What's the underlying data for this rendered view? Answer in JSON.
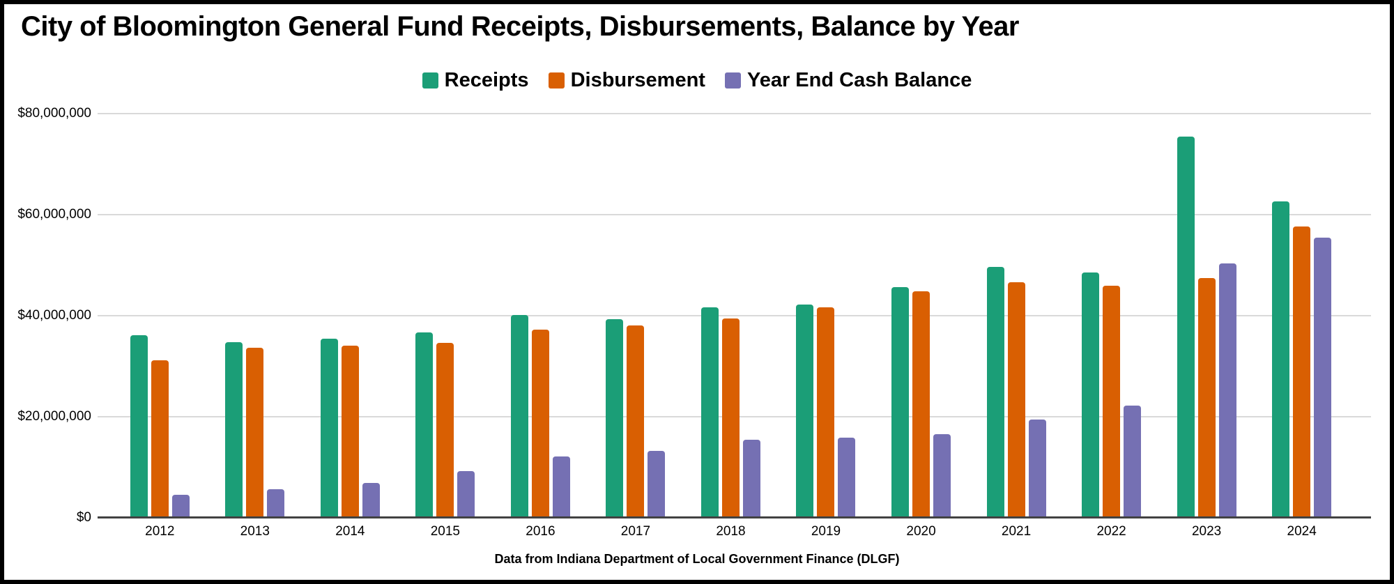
{
  "header": {
    "title": "City of Bloomington General Fund Receipts, Disbursements, Balance by Year"
  },
  "legend": {
    "items": [
      {
        "label": "Receipts",
        "color": "#1b9e77"
      },
      {
        "label": "Disbursement",
        "color": "#d95f02"
      },
      {
        "label": "Year End Cash Balance",
        "color": "#7570b3"
      }
    ]
  },
  "footer": {
    "text": "Data from Indiana Department of Local Government Finance (DLGF)"
  },
  "colors": {
    "background": "#ffffff",
    "frame_border": "#000000",
    "gridline": "#d9d9d9",
    "axis_line": "#424242",
    "text": "#000000",
    "receipts": "#1b9e77",
    "disbursement": "#d95f02",
    "year_end_cash_balance": "#7570b3"
  },
  "chart_data": {
    "type": "bar",
    "title": "City of Bloomington General Fund Receipts, Disbursements, Balance by Year",
    "categories": [
      "2012",
      "2013",
      "2014",
      "2015",
      "2016",
      "2017",
      "2018",
      "2019",
      "2020",
      "2021",
      "2022",
      "2023",
      "2024"
    ],
    "series": [
      {
        "name": "Receipts",
        "color": "#1b9e77",
        "values": [
          36200000,
          34800000,
          35400000,
          36700000,
          40100000,
          39300000,
          41600000,
          42200000,
          45600000,
          49600000,
          48600000,
          75400000,
          62600000
        ]
      },
      {
        "name": "Disbursement",
        "color": "#d95f02",
        "values": [
          31200000,
          33600000,
          34100000,
          34600000,
          37300000,
          38100000,
          39400000,
          41700000,
          44800000,
          46600000,
          46000000,
          47400000,
          57700000
        ]
      },
      {
        "name": "Year End Cash Balance",
        "color": "#7570b3",
        "values": [
          4600000,
          5700000,
          6900000,
          9200000,
          12100000,
          13300000,
          15400000,
          15800000,
          16600000,
          19500000,
          22200000,
          50300000,
          55400000
        ]
      }
    ],
    "xlabel": "",
    "ylabel": "",
    "ylim": [
      0,
      80000000
    ],
    "y_ticks": [
      {
        "label": "$0",
        "value": 0
      },
      {
        "label": "$20,000,000",
        "value": 20000000
      },
      {
        "label": "$40,000,000",
        "value": 40000000
      },
      {
        "label": "$60,000,000",
        "value": 60000000
      },
      {
        "label": "$80,000,000",
        "value": 80000000
      }
    ],
    "grid": true,
    "legend_position": "top",
    "source_note": "Data from Indiana Department of Local Government Finance (DLGF)"
  }
}
